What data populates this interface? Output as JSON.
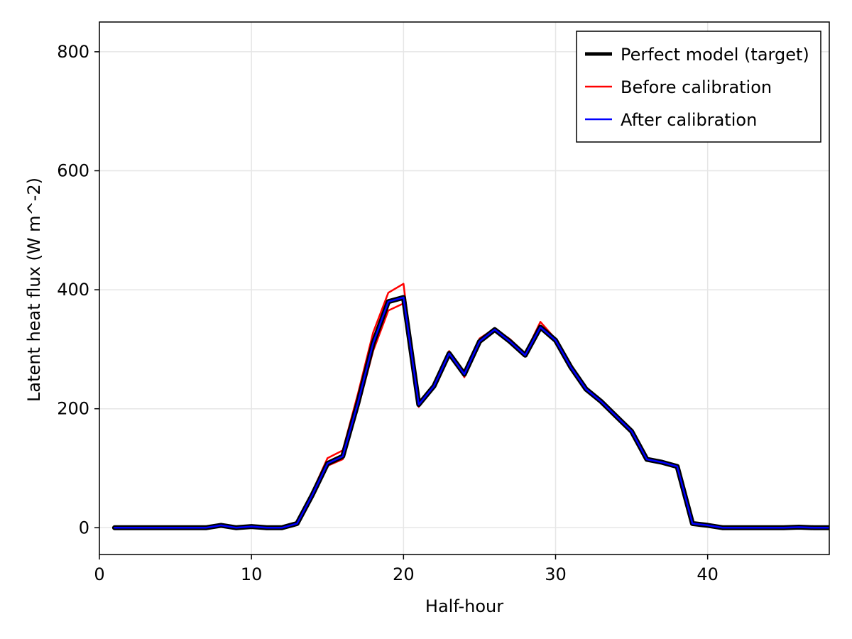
{
  "chart_data": {
    "type": "line",
    "xlabel": "Half-hour",
    "ylabel": "Latent heat flux (W m^-2)",
    "xlim": [
      0,
      48
    ],
    "ylim": [
      -45,
      850
    ],
    "xticks": [
      0,
      10,
      20,
      30,
      40
    ],
    "yticks": [
      0,
      200,
      400,
      600,
      800
    ],
    "grid": true,
    "legend_position": "top-right",
    "x": [
      1,
      2,
      3,
      4,
      5,
      6,
      7,
      8,
      9,
      10,
      11,
      12,
      13,
      14,
      15,
      16,
      17,
      18,
      19,
      20,
      21,
      22,
      23,
      24,
      25,
      26,
      27,
      28,
      29,
      30,
      31,
      32,
      33,
      34,
      35,
      36,
      37,
      38,
      39,
      40,
      41,
      42,
      43,
      44,
      45,
      46,
      47,
      48
    ],
    "series": [
      {
        "name": "Perfect model (target)",
        "color": "#000000",
        "values": [
          0,
          0,
          0,
          0,
          0,
          0,
          0,
          4,
          0,
          2,
          0,
          0,
          7,
          55,
          108,
          120,
          210,
          310,
          380,
          387,
          207,
          238,
          293,
          258,
          313,
          333,
          313,
          290,
          337,
          315,
          270,
          233,
          212,
          187,
          162,
          115,
          110,
          103,
          7,
          4,
          0,
          0,
          0,
          0,
          0,
          1,
          0,
          0
        ]
      },
      {
        "name": "Before calibration",
        "color": "#ff0000",
        "values": [
          0,
          0,
          0,
          0,
          0,
          0,
          0,
          4,
          0,
          2,
          0,
          0,
          7,
          60,
          117,
          130,
          225,
          328,
          395,
          410,
          203,
          240,
          297,
          253,
          318,
          335,
          317,
          293,
          346,
          317,
          275,
          232,
          212,
          186,
          162,
          115,
          110,
          103,
          7,
          4,
          0,
          0,
          0,
          0,
          0,
          1,
          0,
          0
        ]
      },
      {
        "name": "After calibration",
        "color": "#0000ff",
        "values": [
          0,
          0,
          0,
          0,
          0,
          0,
          0,
          4,
          0,
          2,
          0,
          0,
          7,
          55,
          108,
          120,
          210,
          310,
          380,
          387,
          207,
          238,
          293,
          258,
          313,
          333,
          313,
          290,
          337,
          315,
          270,
          233,
          212,
          187,
          162,
          115,
          110,
          103,
          7,
          4,
          0,
          0,
          0,
          0,
          0,
          1,
          0,
          0
        ]
      }
    ],
    "before_calibration_lower_trace": [
      0,
      0,
      0,
      0,
      0,
      0,
      0,
      4,
      0,
      2,
      0,
      0,
      7,
      52,
      104,
      115,
      200,
      297,
      365,
      377,
      207,
      238,
      293,
      258,
      313,
      333,
      313,
      290,
      337,
      315,
      270,
      233,
      212,
      187,
      162,
      115,
      110,
      103,
      7,
      4,
      0,
      0,
      0,
      0,
      0,
      1,
      0,
      0
    ]
  }
}
